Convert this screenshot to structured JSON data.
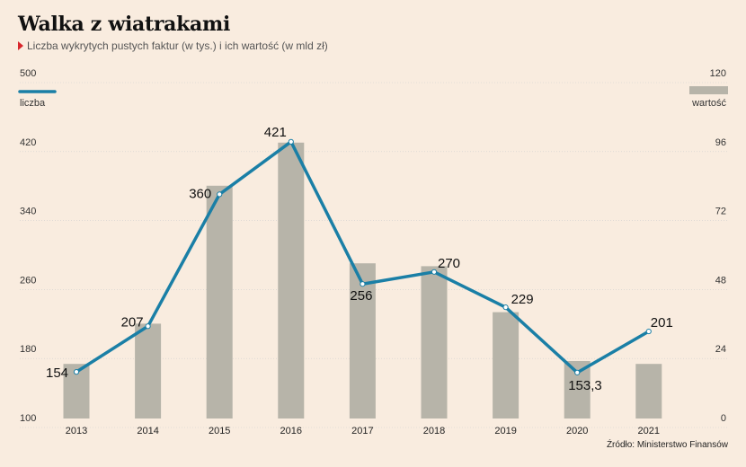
{
  "title": "Walka z wiatrakami",
  "subtitle": "Liczba wykrytych pustych faktur (w tys.) i ich wartość (w mld zł)",
  "source": "Źródło: Ministerstwo Finansów",
  "colors": {
    "line": "#1a7fa6",
    "bar": "#b7b4a9",
    "grid": "#cfcfcf",
    "background": "#f9ecdf"
  },
  "chart_data": {
    "type": "bar+line",
    "categories": [
      "2013",
      "2014",
      "2015",
      "2016",
      "2017",
      "2018",
      "2019",
      "2020",
      "2021"
    ],
    "series": [
      {
        "name": "liczba",
        "type": "line",
        "axis": "left",
        "values": [
          154,
          207,
          360,
          421,
          256,
          270,
          229,
          153.3,
          201
        ],
        "labels": [
          "154",
          "207",
          "360",
          "421",
          "256",
          "270",
          "229",
          "153,3",
          "201"
        ]
      },
      {
        "name": "wartość",
        "type": "bar",
        "axis": "right",
        "values": [
          19,
          33,
          81,
          96,
          54,
          53,
          37,
          20,
          19
        ]
      }
    ],
    "left_axis": {
      "ticks": [
        "500",
        "420",
        "340",
        "260",
        "180",
        "100"
      ],
      "range": [
        100,
        500
      ]
    },
    "right_axis": {
      "ticks": [
        "120",
        "96",
        "72",
        "48",
        "24",
        "0"
      ],
      "range": [
        0,
        120
      ]
    },
    "grid": true
  }
}
